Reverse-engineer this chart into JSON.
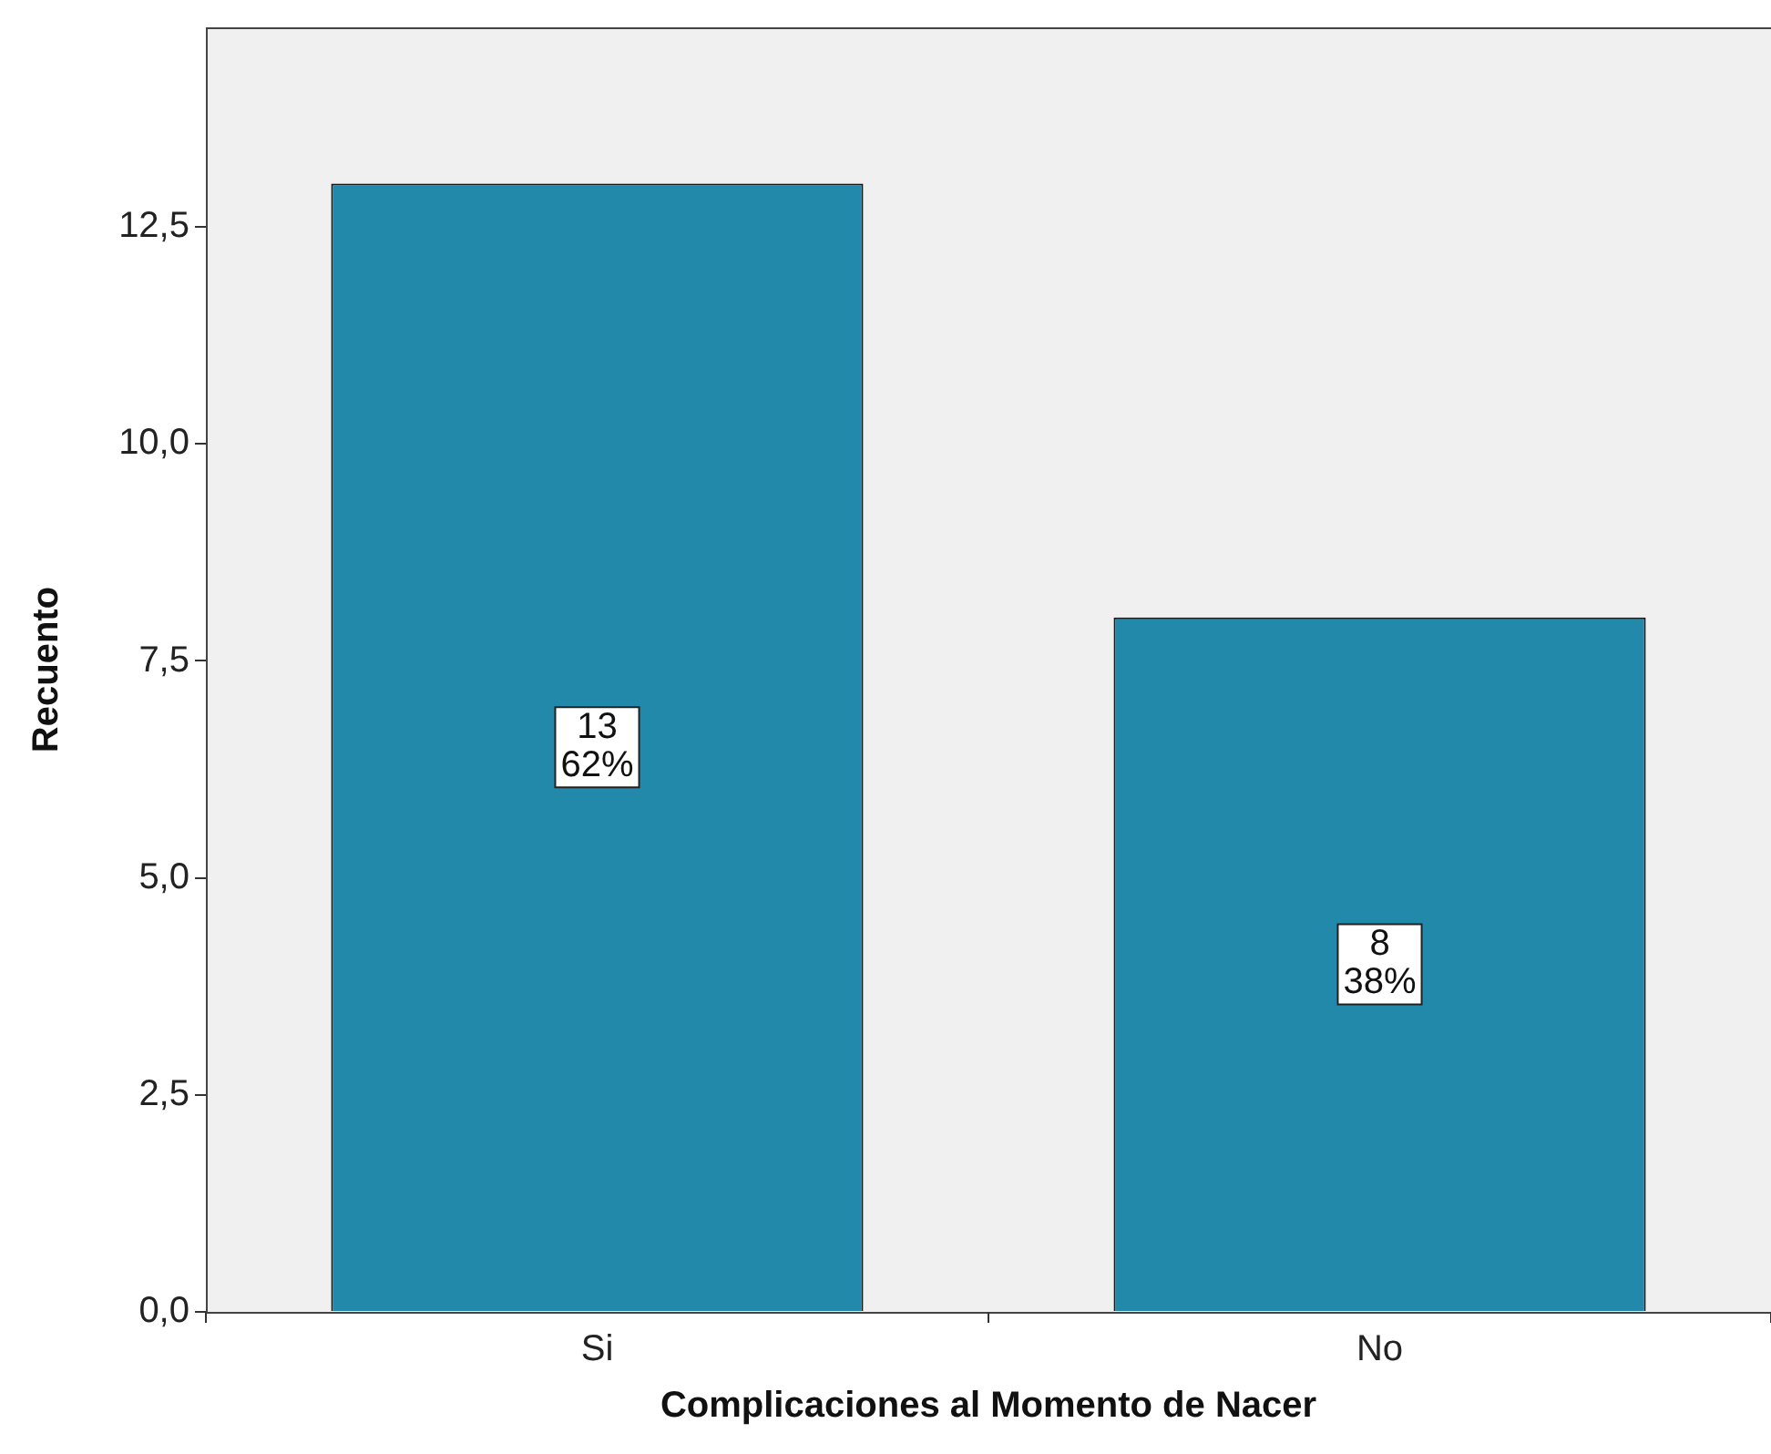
{
  "chart_data": {
    "type": "bar",
    "xlabel": "Complicaciones al Momento de Nacer",
    "ylabel": "Recuento",
    "categories": [
      "Si",
      "No"
    ],
    "values": [
      13,
      8
    ],
    "value_labels": [
      "13\n62%",
      "8\n38%"
    ],
    "color": "#2389ab",
    "ylim": [
      0,
      14.8
    ],
    "yticks": [
      {
        "value": 0,
        "label": "0,0"
      },
      {
        "value": 2.5,
        "label": "2,5"
      },
      {
        "value": 5,
        "label": "5,0"
      },
      {
        "value": 7.5,
        "label": "7,5"
      },
      {
        "value": 10,
        "label": "10,0"
      },
      {
        "value": 12.5,
        "label": "12,5"
      }
    ],
    "grid": false,
    "legend": false
  }
}
